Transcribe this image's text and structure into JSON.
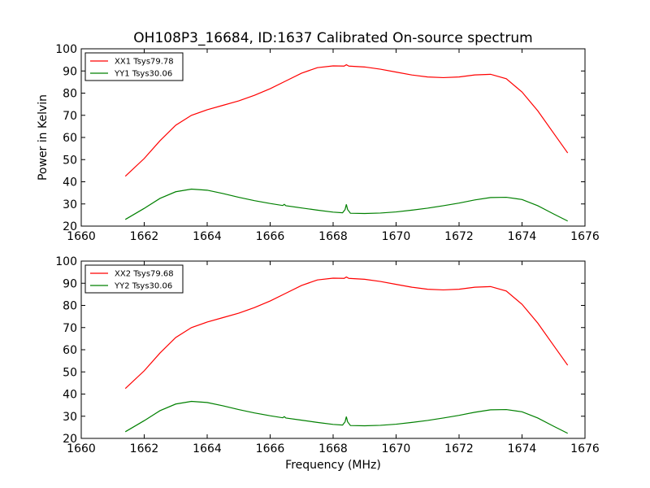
{
  "figure": {
    "title": "OH108P3_16684, ID:1637 Calibrated On-source spectrum",
    "xlabel": "Frequency (MHz)"
  },
  "chart_data": [
    {
      "type": "line",
      "title": "OH108P3_16684, ID:1637 Calibrated On-source spectrum",
      "xlabel": "",
      "ylabel": "Power in Kelvin",
      "xlim": [
        1660,
        1676
      ],
      "ylim": [
        20,
        100
      ],
      "xticks": [
        1660,
        1662,
        1664,
        1666,
        1668,
        1670,
        1672,
        1674,
        1676
      ],
      "yticks": [
        20,
        30,
        40,
        50,
        60,
        70,
        80,
        90,
        100
      ],
      "legend_position": "top-left",
      "grid": false,
      "series": [
        {
          "name": "XX1 Tsys79.78",
          "color": "#ff0000",
          "x": [
            1661.4,
            1662.0,
            1662.5,
            1663.0,
            1663.5,
            1664.0,
            1664.5,
            1665.0,
            1665.5,
            1666.0,
            1666.5,
            1667.0,
            1667.5,
            1668.0,
            1668.35,
            1668.42,
            1668.5,
            1669.0,
            1669.5,
            1670.0,
            1670.5,
            1671.0,
            1671.5,
            1672.0,
            1672.5,
            1673.0,
            1673.5,
            1674.0,
            1674.5,
            1675.0,
            1675.45
          ],
          "y": [
            42.5,
            50.5,
            58.5,
            65.5,
            70.0,
            72.5,
            74.5,
            76.5,
            79.0,
            82.0,
            85.5,
            89.0,
            91.5,
            92.3,
            92.2,
            92.8,
            92.2,
            91.8,
            90.8,
            89.5,
            88.2,
            87.3,
            87.0,
            87.3,
            88.2,
            88.5,
            86.5,
            80.5,
            72.0,
            62.0,
            53.0
          ]
        },
        {
          "name": "YY1 Tsys30.06",
          "color": "#008000",
          "x": [
            1661.4,
            1662.0,
            1662.5,
            1663.0,
            1663.5,
            1664.0,
            1664.5,
            1665.0,
            1665.5,
            1666.0,
            1666.4,
            1666.45,
            1666.5,
            1667.0,
            1667.5,
            1668.0,
            1668.3,
            1668.38,
            1668.42,
            1668.46,
            1668.55,
            1669.0,
            1669.5,
            1670.0,
            1670.5,
            1671.0,
            1671.5,
            1672.0,
            1672.5,
            1673.0,
            1673.5,
            1674.0,
            1674.5,
            1675.0,
            1675.45
          ],
          "y": [
            23.0,
            28.0,
            32.5,
            35.5,
            36.7,
            36.2,
            34.7,
            33.0,
            31.5,
            30.2,
            29.3,
            29.8,
            29.2,
            28.2,
            27.2,
            26.3,
            26.0,
            27.5,
            29.8,
            27.5,
            25.8,
            25.7,
            25.9,
            26.4,
            27.2,
            28.1,
            29.2,
            30.4,
            31.8,
            32.9,
            33.0,
            32.0,
            29.2,
            25.5,
            22.3
          ]
        }
      ]
    },
    {
      "type": "line",
      "title": "",
      "xlabel": "Frequency (MHz)",
      "ylabel": "",
      "xlim": [
        1660,
        1676
      ],
      "ylim": [
        20,
        100
      ],
      "xticks": [
        1660,
        1662,
        1664,
        1666,
        1668,
        1670,
        1672,
        1674,
        1676
      ],
      "yticks": [
        20,
        30,
        40,
        50,
        60,
        70,
        80,
        90,
        100
      ],
      "legend_position": "top-left",
      "grid": false,
      "series": [
        {
          "name": "XX2 Tsys79.68",
          "color": "#ff0000",
          "x": [
            1661.4,
            1662.0,
            1662.5,
            1663.0,
            1663.5,
            1664.0,
            1664.5,
            1665.0,
            1665.5,
            1666.0,
            1666.5,
            1667.0,
            1667.5,
            1668.0,
            1668.35,
            1668.42,
            1668.5,
            1669.0,
            1669.5,
            1670.0,
            1670.5,
            1671.0,
            1671.5,
            1672.0,
            1672.5,
            1673.0,
            1673.5,
            1674.0,
            1674.5,
            1675.0,
            1675.45
          ],
          "y": [
            42.5,
            50.5,
            58.5,
            65.5,
            70.0,
            72.5,
            74.5,
            76.5,
            79.0,
            82.0,
            85.5,
            89.0,
            91.5,
            92.3,
            92.2,
            92.8,
            92.2,
            91.8,
            90.8,
            89.5,
            88.2,
            87.3,
            87.0,
            87.3,
            88.2,
            88.5,
            86.5,
            80.5,
            72.0,
            62.0,
            53.0
          ]
        },
        {
          "name": "YY2 Tsys30.06",
          "color": "#008000",
          "x": [
            1661.4,
            1662.0,
            1662.5,
            1663.0,
            1663.5,
            1664.0,
            1664.5,
            1665.0,
            1665.5,
            1666.0,
            1666.4,
            1666.45,
            1666.5,
            1667.0,
            1667.5,
            1668.0,
            1668.3,
            1668.38,
            1668.42,
            1668.46,
            1668.55,
            1669.0,
            1669.5,
            1670.0,
            1670.5,
            1671.0,
            1671.5,
            1672.0,
            1672.5,
            1673.0,
            1673.5,
            1674.0,
            1674.5,
            1675.0,
            1675.45
          ],
          "y": [
            23.0,
            28.0,
            32.5,
            35.5,
            36.7,
            36.2,
            34.7,
            33.0,
            31.5,
            30.2,
            29.3,
            29.8,
            29.2,
            28.2,
            27.2,
            26.3,
            26.0,
            27.5,
            29.8,
            27.5,
            25.8,
            25.7,
            25.9,
            26.4,
            27.2,
            28.1,
            29.2,
            30.4,
            31.8,
            32.9,
            33.0,
            32.0,
            29.2,
            25.5,
            22.3
          ]
        }
      ]
    }
  ]
}
